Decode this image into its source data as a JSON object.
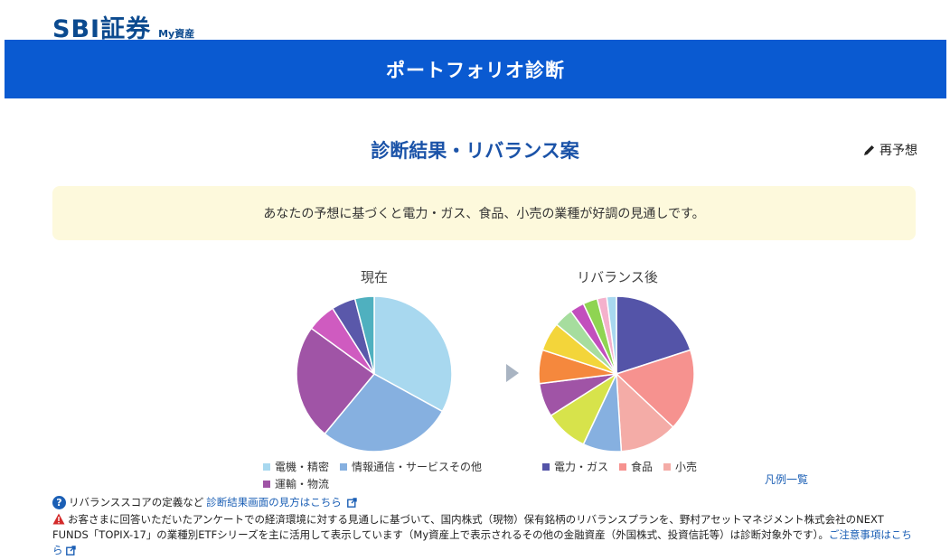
{
  "header": {
    "logo_main": "SBI証券",
    "logo_sub": "My資産"
  },
  "banner": {
    "title": "ポートフォリオ診断"
  },
  "result": {
    "title": "診断結果・リバランス案",
    "repredict_label": "再予想",
    "notice": "あなたの予想に基づくと電力・ガス、食品、小売の業種が好調の見通しです。"
  },
  "colors": {
    "brand_blue": "#0a5ad1",
    "title_blue": "#1b53a8",
    "link_blue": "#1b5fb5",
    "notice_bg": "#fdf9dc"
  },
  "chart_data": [
    {
      "type": "pie",
      "title": "現在",
      "slices": [
        {
          "label": "電機・精密",
          "value": 33,
          "color": "#a8d8ef"
        },
        {
          "label": "情報通信・サービスその他",
          "value": 28,
          "color": "#86b0e0"
        },
        {
          "label": "運輸・物流",
          "value": 24,
          "color": "#a054a6"
        },
        {
          "label": "",
          "value": 6,
          "color": "#cf5bc0"
        },
        {
          "label": "",
          "value": 5,
          "color": "#5a58aa"
        },
        {
          "label": "",
          "value": 4,
          "color": "#4fb0bf"
        }
      ]
    },
    {
      "type": "pie",
      "title": "リバランス後",
      "slices": [
        {
          "label": "電力・ガス",
          "value": 20,
          "color": "#5454a8"
        },
        {
          "label": "食品",
          "value": 17,
          "color": "#f6928f"
        },
        {
          "label": "小売",
          "value": 12,
          "color": "#f4aca7"
        },
        {
          "label": "",
          "value": 8,
          "color": "#86b0e0"
        },
        {
          "label": "",
          "value": 9,
          "color": "#d7e34b"
        },
        {
          "label": "",
          "value": 7,
          "color": "#a054a6"
        },
        {
          "label": "",
          "value": 7,
          "color": "#f5883d"
        },
        {
          "label": "",
          "value": 6,
          "color": "#f3d53a"
        },
        {
          "label": "",
          "value": 4,
          "color": "#a6dd9e"
        },
        {
          "label": "",
          "value": 3,
          "color": "#c24fbd"
        },
        {
          "label": "",
          "value": 3,
          "color": "#8fd452"
        },
        {
          "label": "",
          "value": 2,
          "color": "#f4b1cc"
        },
        {
          "label": "",
          "value": 2,
          "color": "#a8d8ef"
        }
      ]
    }
  ],
  "legend_current": {
    "row1": [
      "電機・精密",
      "情報通信・サービスその他"
    ],
    "row2": [
      "運輸・物流"
    ]
  },
  "legend_after": [
    "電力・ガス",
    "食品",
    "小売"
  ],
  "legend_link": "凡例一覧",
  "footnotes": {
    "fn1_text": "リバランススコアの定義など",
    "fn1_link": "診断結果画面の見方はこちら",
    "fn2_text": "お客さまに回答いただいたアンケートでの経済環境に対する見通しに基づいて、国内株式（現物）保有銘柄のリバランスプランを、野村アセットマネジメント株式会社のNEXT FUNDS「TOPIX-17」の業種別ETFシリーズを主に活用して表示しています（My資産上で表示されるその他の金融資産（外国株式、投資信託等）は診断対象外です）。",
    "fn2_link": "ご注意事項はこちら"
  }
}
